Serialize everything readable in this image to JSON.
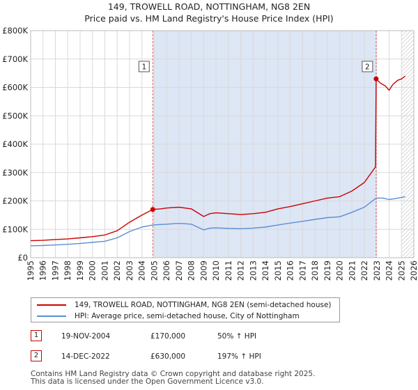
{
  "colors": {
    "price": "#cc0000",
    "hpi": "#5b8ed1",
    "shade": "#dde6f5",
    "grid": "#d9d9d9",
    "vline": "#e06666"
  },
  "chart_data": {
    "type": "line",
    "title": "149, TROWELL ROAD, NOTTINGHAM, NG8 2EN",
    "subtitle": "Price paid vs. HM Land Registry's House Price Index (HPI)",
    "xlim": [
      1995,
      2026
    ],
    "ylim": [
      0,
      800000
    ],
    "x_ticks": [
      "1995",
      "1996",
      "1997",
      "1998",
      "1999",
      "2000",
      "2001",
      "2002",
      "2003",
      "2004",
      "2005",
      "2006",
      "2007",
      "2008",
      "2009",
      "2010",
      "2011",
      "2012",
      "2013",
      "2014",
      "2015",
      "2016",
      "2017",
      "2018",
      "2019",
      "2020",
      "2021",
      "2022",
      "2023",
      "2024",
      "2025",
      "2026"
    ],
    "y_ticks": [
      {
        "value": 0,
        "label": "£0"
      },
      {
        "value": 100000,
        "label": "£100K"
      },
      {
        "value": 200000,
        "label": "£200K"
      },
      {
        "value": 300000,
        "label": "£300K"
      },
      {
        "value": 400000,
        "label": "£400K"
      },
      {
        "value": 500000,
        "label": "£500K"
      },
      {
        "value": 600000,
        "label": "£600K"
      },
      {
        "value": 700000,
        "label": "£700K"
      },
      {
        "value": 800000,
        "label": "£800K"
      }
    ],
    "shaded_range": [
      2004.88,
      2022.95
    ],
    "forecast_from": 2025.0,
    "series": [
      {
        "name": "149, TROWELL ROAD, NOTTINGHAM, NG8 2EN (semi-detached house)",
        "color": "#cc0000",
        "points": [
          [
            1995,
            60000
          ],
          [
            1996,
            61000
          ],
          [
            1997,
            64000
          ],
          [
            1998,
            66000
          ],
          [
            1999,
            70000
          ],
          [
            2000,
            74000
          ],
          [
            2001,
            80000
          ],
          [
            2002,
            95000
          ],
          [
            2003,
            125000
          ],
          [
            2004,
            150000
          ],
          [
            2004.88,
            170000
          ],
          [
            2005.5,
            172000
          ],
          [
            2006,
            175000
          ],
          [
            2007,
            178000
          ],
          [
            2008,
            172000
          ],
          [
            2009,
            145000
          ],
          [
            2009.5,
            155000
          ],
          [
            2010,
            158000
          ],
          [
            2011,
            155000
          ],
          [
            2012,
            152000
          ],
          [
            2013,
            155000
          ],
          [
            2014,
            160000
          ],
          [
            2015,
            172000
          ],
          [
            2016,
            180000
          ],
          [
            2017,
            190000
          ],
          [
            2018,
            200000
          ],
          [
            2019,
            210000
          ],
          [
            2020,
            215000
          ],
          [
            2021,
            235000
          ],
          [
            2022,
            265000
          ],
          [
            2022.9,
            320000
          ],
          [
            2022.95,
            630000
          ],
          [
            2023.3,
            615000
          ],
          [
            2023.7,
            605000
          ],
          [
            2024,
            590000
          ],
          [
            2024.3,
            610000
          ],
          [
            2024.7,
            625000
          ],
          [
            2025,
            630000
          ],
          [
            2025.3,
            640000
          ]
        ]
      },
      {
        "name": "HPI: Average price, semi-detached house, City of Nottingham",
        "color": "#5b8ed1",
        "points": [
          [
            1995,
            42000
          ],
          [
            1996,
            43000
          ],
          [
            1997,
            45000
          ],
          [
            1998,
            47000
          ],
          [
            1999,
            50000
          ],
          [
            2000,
            54000
          ],
          [
            2001,
            58000
          ],
          [
            2002,
            70000
          ],
          [
            2003,
            92000
          ],
          [
            2004,
            108000
          ],
          [
            2004.88,
            115000
          ],
          [
            2005.5,
            117000
          ],
          [
            2006,
            118000
          ],
          [
            2007,
            121000
          ],
          [
            2008,
            118000
          ],
          [
            2009,
            98000
          ],
          [
            2009.5,
            104000
          ],
          [
            2010,
            105000
          ],
          [
            2011,
            103000
          ],
          [
            2012,
            102000
          ],
          [
            2013,
            104000
          ],
          [
            2014,
            108000
          ],
          [
            2015,
            115000
          ],
          [
            2016,
            122000
          ],
          [
            2017,
            128000
          ],
          [
            2018,
            135000
          ],
          [
            2019,
            141000
          ],
          [
            2020,
            144000
          ],
          [
            2021,
            160000
          ],
          [
            2022,
            178000
          ],
          [
            2022.95,
            210000
          ],
          [
            2023.5,
            210000
          ],
          [
            2024,
            205000
          ],
          [
            2024.5,
            208000
          ],
          [
            2025,
            212000
          ],
          [
            2025.3,
            215000
          ]
        ]
      }
    ],
    "sales": [
      {
        "label": "1",
        "x": 2004.88,
        "y": 170000
      },
      {
        "label": "2",
        "x": 2022.95,
        "y": 630000
      }
    ]
  },
  "title_line1": "149, TROWELL ROAD, NOTTINGHAM, NG8 2EN",
  "title_line2": "Price paid vs. HM Land Registry's House Price Index (HPI)",
  "legend": {
    "price_label": "149, TROWELL ROAD, NOTTINGHAM, NG8 2EN (semi-detached house)",
    "hpi_label": "HPI: Average price, semi-detached house, City of Nottingham"
  },
  "sales_table": [
    {
      "num": "1",
      "date": "19-NOV-2004",
      "price": "£170,000",
      "hpi": "50% ↑ HPI"
    },
    {
      "num": "2",
      "date": "14-DEC-2022",
      "price": "£630,000",
      "hpi": "197% ↑ HPI"
    }
  ],
  "footer": {
    "line1": "Contains HM Land Registry data © Crown copyright and database right 2025.",
    "line2": "This data is licensed under the Open Government Licence v3.0."
  }
}
